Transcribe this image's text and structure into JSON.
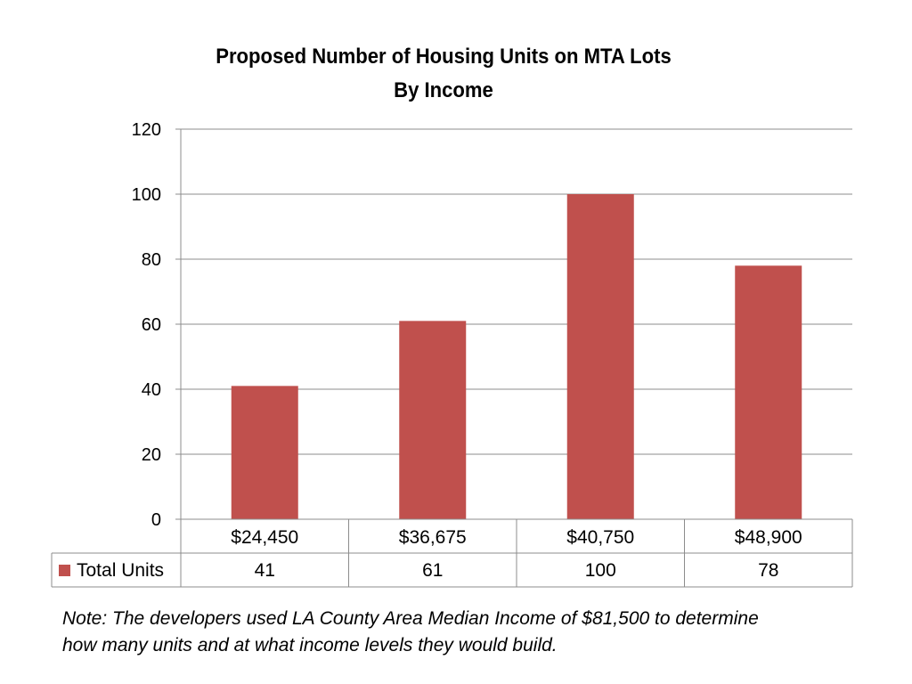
{
  "chart_data": {
    "type": "bar",
    "title": "Proposed Number of Housing Units on MTA Lots",
    "subtitle": "By Income",
    "categories": [
      "$24,450",
      "$36,675",
      "$40,750",
      "$48,900"
    ],
    "series": [
      {
        "name": "Total Units",
        "values": [
          41,
          61,
          100,
          78
        ],
        "color": "#C0504D"
      }
    ],
    "ylim": [
      0,
      120
    ],
    "yticks": [
      0,
      20,
      40,
      60,
      80,
      100,
      120
    ],
    "grid": true,
    "legend": "data-table"
  },
  "note": {
    "line1": "Note: The developers used LA County Area Median Income of $81,500 to determine",
    "line2": "how many  units and at what income levels they would build."
  }
}
